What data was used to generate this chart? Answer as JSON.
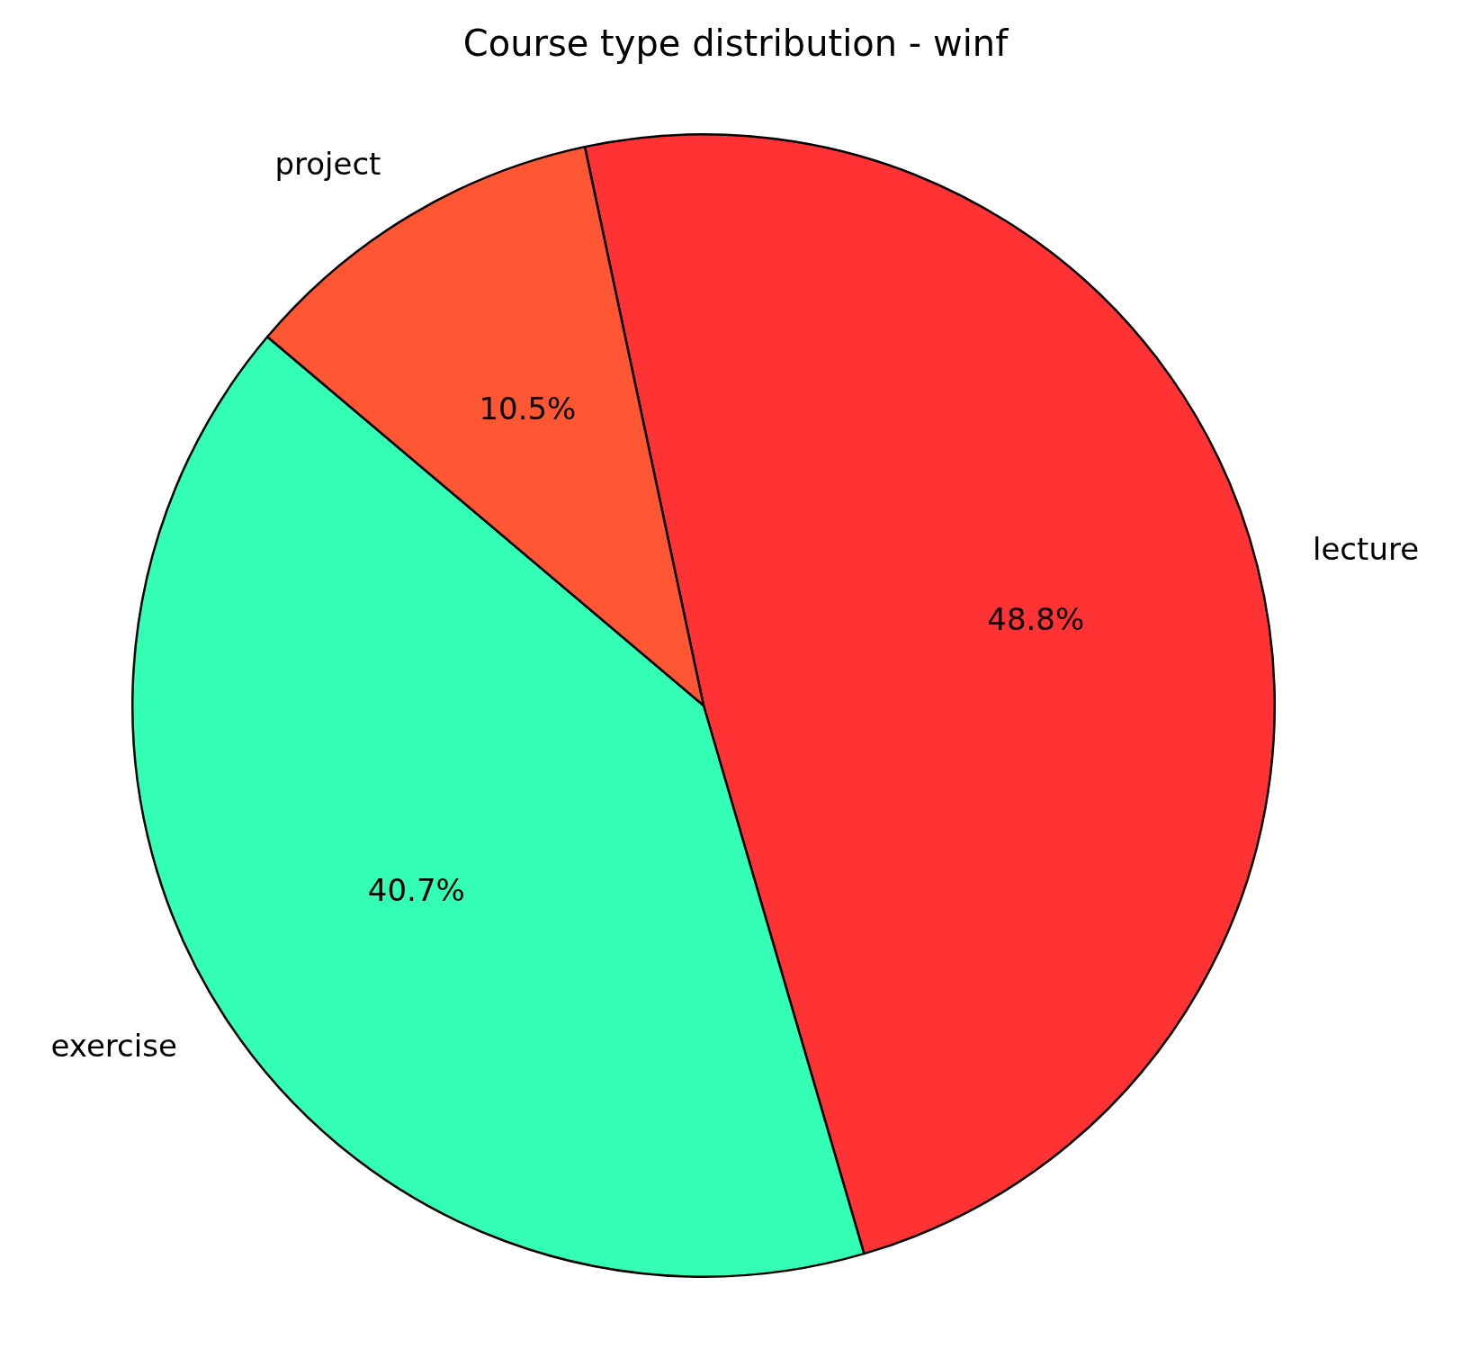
{
  "chart_data": {
    "type": "pie",
    "title": "Course type distribution - winf",
    "categories": [
      "lecture",
      "exercise",
      "project"
    ],
    "values": [
      48.8,
      40.7,
      10.5
    ],
    "colors": [
      "#ff3333",
      "#33ffb5",
      "#ff5733"
    ],
    "value_labels": [
      "48.8%",
      "40.7%",
      "10.5%"
    ],
    "legend": false
  }
}
